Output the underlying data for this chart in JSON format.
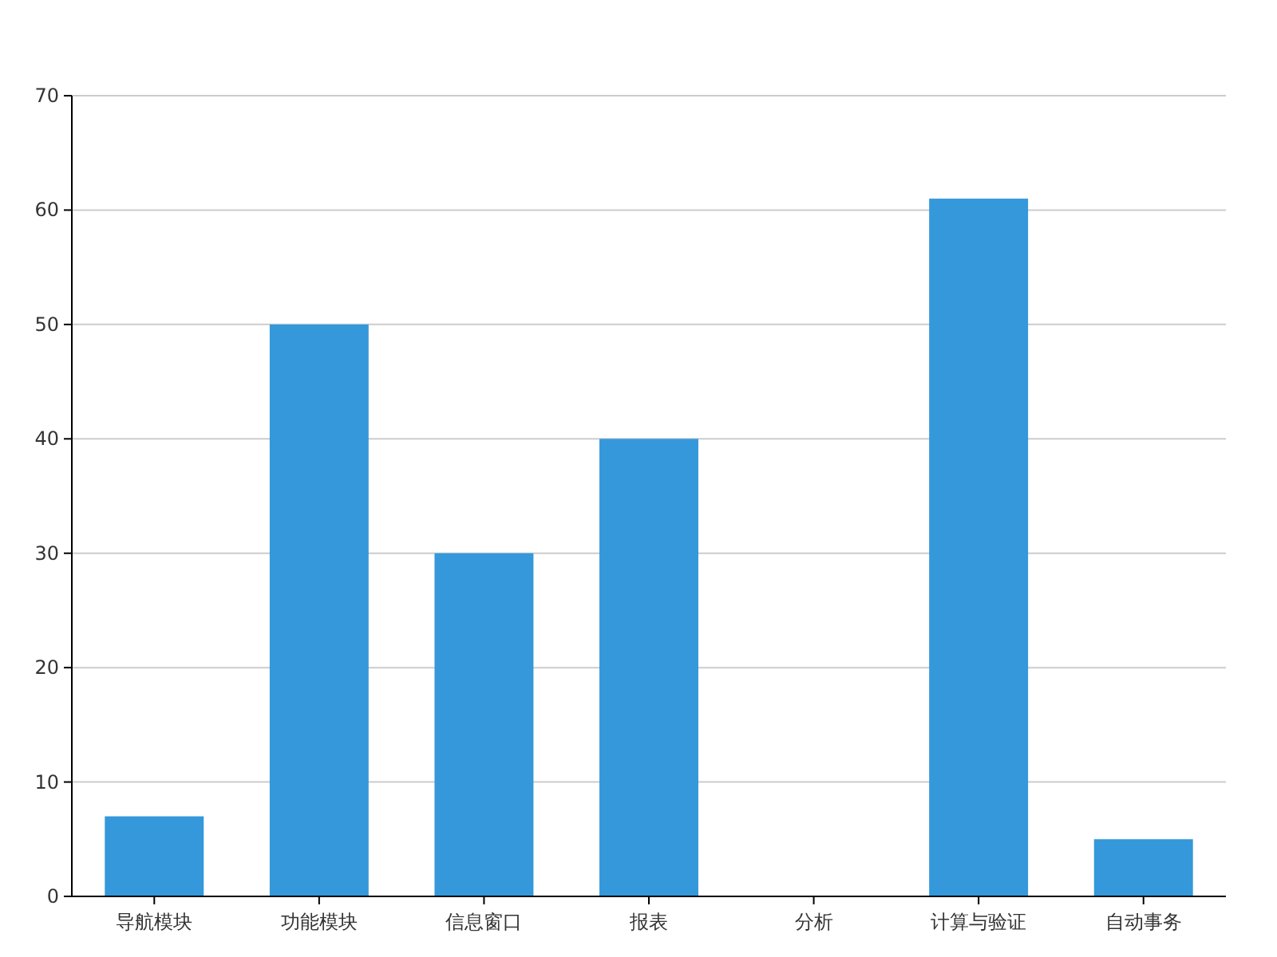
{
  "chart_data": {
    "type": "bar",
    "categories": [
      "导航模块",
      "功能模块",
      "信息窗口",
      "报表",
      "分析",
      "计算与验证",
      "自动事务"
    ],
    "values": [
      7,
      50,
      30,
      40,
      0,
      61,
      5
    ],
    "color": "#3498db",
    "ylim": [
      0,
      70
    ],
    "yticks": [
      0,
      10,
      20,
      30,
      40,
      50,
      60,
      70
    ],
    "grid": "y"
  }
}
